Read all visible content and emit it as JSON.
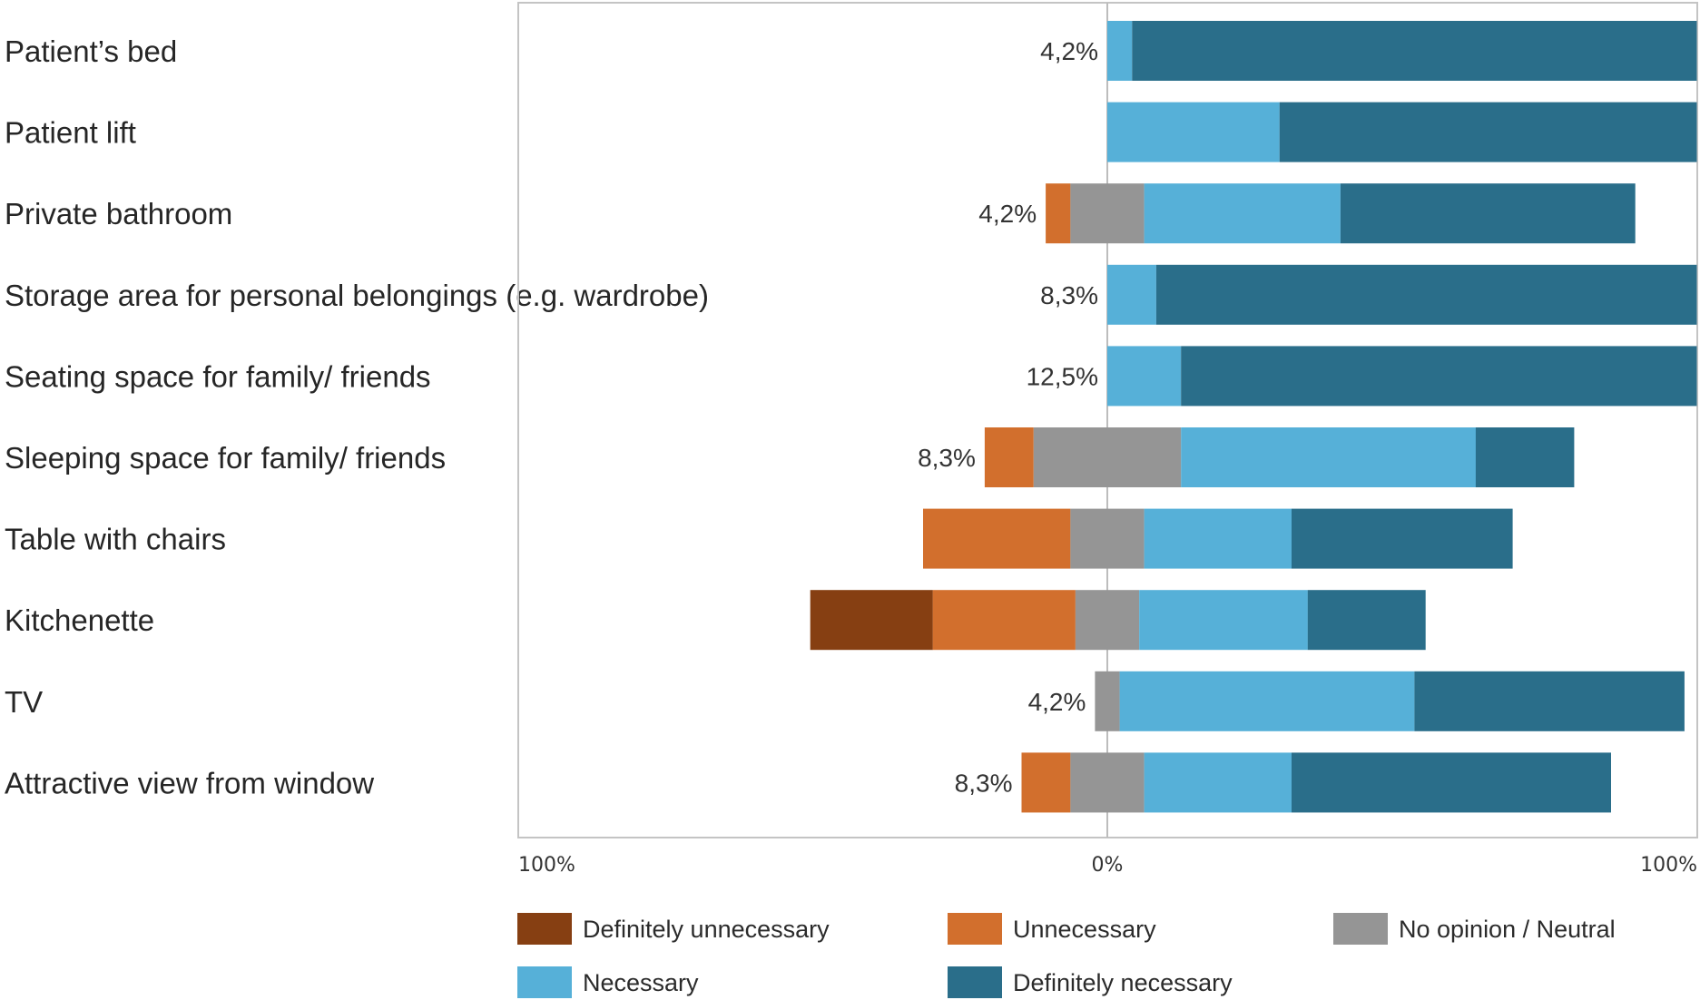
{
  "chart_data": {
    "type": "bar",
    "orientation": "horizontal",
    "stacked": "diverging",
    "title": "",
    "xlabel": "",
    "ylabel": "",
    "xlim": [
      -100,
      100
    ],
    "x_tick_labels": [
      "100%",
      "0%",
      "100%"
    ],
    "grid": false,
    "legend_position": "bottom",
    "categories": [
      "Patient’s bed",
      "Patient lift",
      "Private bathroom",
      "Storage area for personal belongings (e.g. wardrobe)",
      "Seating space for family/ friends",
      "Sleeping space for family/ friends",
      "Table with chairs",
      "Kitchenette",
      "TV",
      "Attractive view from window"
    ],
    "series": [
      {
        "name": "Definitely unnecessary",
        "color": "#863f12",
        "values": [
          0,
          0,
          0,
          0,
          0,
          0,
          0,
          20.8,
          0,
          0
        ]
      },
      {
        "name": "Unnecessary",
        "color": "#d26f2d",
        "values": [
          0,
          0,
          4.2,
          0,
          0,
          8.3,
          25.0,
          24.2,
          0,
          8.3
        ]
      },
      {
        "name": "No opinion / Neutral",
        "color": "#959595",
        "values": [
          0,
          0,
          12.5,
          0,
          0,
          25.0,
          12.5,
          10.8,
          4.2,
          12.5
        ]
      },
      {
        "name": "Necessary",
        "color": "#56b0d8",
        "values": [
          4.2,
          29.2,
          33.3,
          8.3,
          12.5,
          50.0,
          25.0,
          28.6,
          50.0,
          25.0
        ]
      },
      {
        "name": "Definitely necessary",
        "color": "#2a6e8a",
        "values": [
          95.8,
          70.8,
          50.0,
          91.7,
          87.5,
          16.7,
          37.5,
          20.0,
          45.8,
          54.2
        ]
      }
    ],
    "data_labels": [
      "4,2%",
      "",
      "4,2%",
      "8,3%",
      "12,5%",
      "8,3%",
      "",
      "",
      "4,2%",
      "8,3%"
    ]
  },
  "legend": [
    {
      "label": "Definitely unnecessary",
      "color": "#863f12"
    },
    {
      "label": "Unnecessary",
      "color": "#d26f2d"
    },
    {
      "label": "No opinion / Neutral",
      "color": "#959595"
    },
    {
      "label": "Necessary",
      "color": "#56b0d8"
    },
    {
      "label": "Definitely necessary",
      "color": "#2a6e8a"
    }
  ]
}
